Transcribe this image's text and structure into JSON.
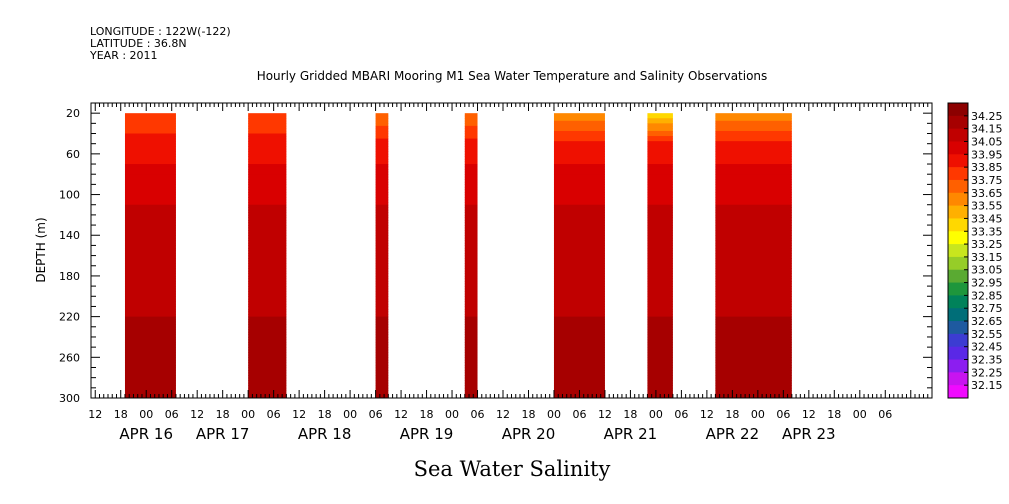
{
  "header": {
    "longitude": "LONGITUDE : 122W(-122)",
    "latitude": "LATITUDE : 36.8N",
    "year": "YEAR : 2011"
  },
  "chart_data": {
    "type": "heatmap",
    "title": "Hourly Gridded MBARI Mooring M1 Sea Water Temperature and Salinity Observations",
    "variable": "Sea Water Salinity",
    "ylabel": "DEPTH (m)",
    "x_unit": "hours",
    "xlim": [
      -13,
      185
    ],
    "ylim": [
      300,
      10
    ],
    "y_ticks": [
      20,
      60,
      100,
      140,
      180,
      220,
      260,
      300
    ],
    "hour_ticks": [
      "12",
      "18",
      "00",
      "06",
      "12",
      "18",
      "00",
      "06",
      "12",
      "18",
      "00",
      "06",
      "12",
      "18",
      "00",
      "06",
      "12",
      "18",
      "00",
      "06",
      "12",
      "18",
      "00",
      "06",
      "12",
      "18",
      "00",
      "06",
      "12",
      "18",
      "00",
      "06"
    ],
    "day_labels": [
      "APR 16",
      "APR 17",
      "APR 18",
      "APR 19",
      "APR 20",
      "APR 21",
      "APR 22",
      "APR 23"
    ],
    "day_label_hours": [
      0,
      18,
      42,
      66,
      90,
      114,
      138,
      156
    ],
    "data_blocks": [
      {
        "start": -5,
        "end": 7,
        "surface": 33.75
      },
      {
        "start": 24,
        "end": 33,
        "surface": 33.75
      },
      {
        "start": 54,
        "end": 57,
        "surface": 33.65
      },
      {
        "start": 75,
        "end": 78,
        "surface": 33.65
      },
      {
        "start": 96,
        "end": 108,
        "surface": 33.55
      },
      {
        "start": 118,
        "end": 124,
        "surface": 33.35
      },
      {
        "start": 134,
        "end": 152,
        "surface": 33.55
      }
    ],
    "depth_profile": [
      [
        20,
        33.75
      ],
      [
        40,
        33.85
      ],
      [
        70,
        33.95
      ],
      [
        110,
        34.05
      ],
      [
        150,
        34.15
      ],
      [
        220,
        34.15
      ],
      [
        250,
        34.25
      ],
      [
        280,
        34.25
      ],
      [
        300,
        34.15
      ]
    ],
    "colorbar": {
      "levels": [
        "34.25",
        "34.15",
        "34.05",
        "33.95",
        "33.85",
        "33.75",
        "33.65",
        "33.55",
        "33.45",
        "33.35",
        "33.25",
        "33.15",
        "33.05",
        "32.95",
        "32.85",
        "32.75",
        "32.65",
        "32.55",
        "32.45",
        "32.35",
        "32.25",
        "32.15"
      ],
      "colors": [
        "#8c0000",
        "#a60000",
        "#c00000",
        "#d90000",
        "#ef1000",
        "#ff3800",
        "#ff6000",
        "#ff8800",
        "#ffb000",
        "#ffd800",
        "#ffff00",
        "#c8e61e",
        "#96cd28",
        "#5aaa32",
        "#1e963c",
        "#00825a",
        "#006e78",
        "#1e5aa0",
        "#3c3cd2",
        "#5a28e6",
        "#8c1ef0",
        "#c814f0",
        "#f00aff"
      ],
      "vmin": 32.15,
      "vmax": 34.25
    }
  }
}
